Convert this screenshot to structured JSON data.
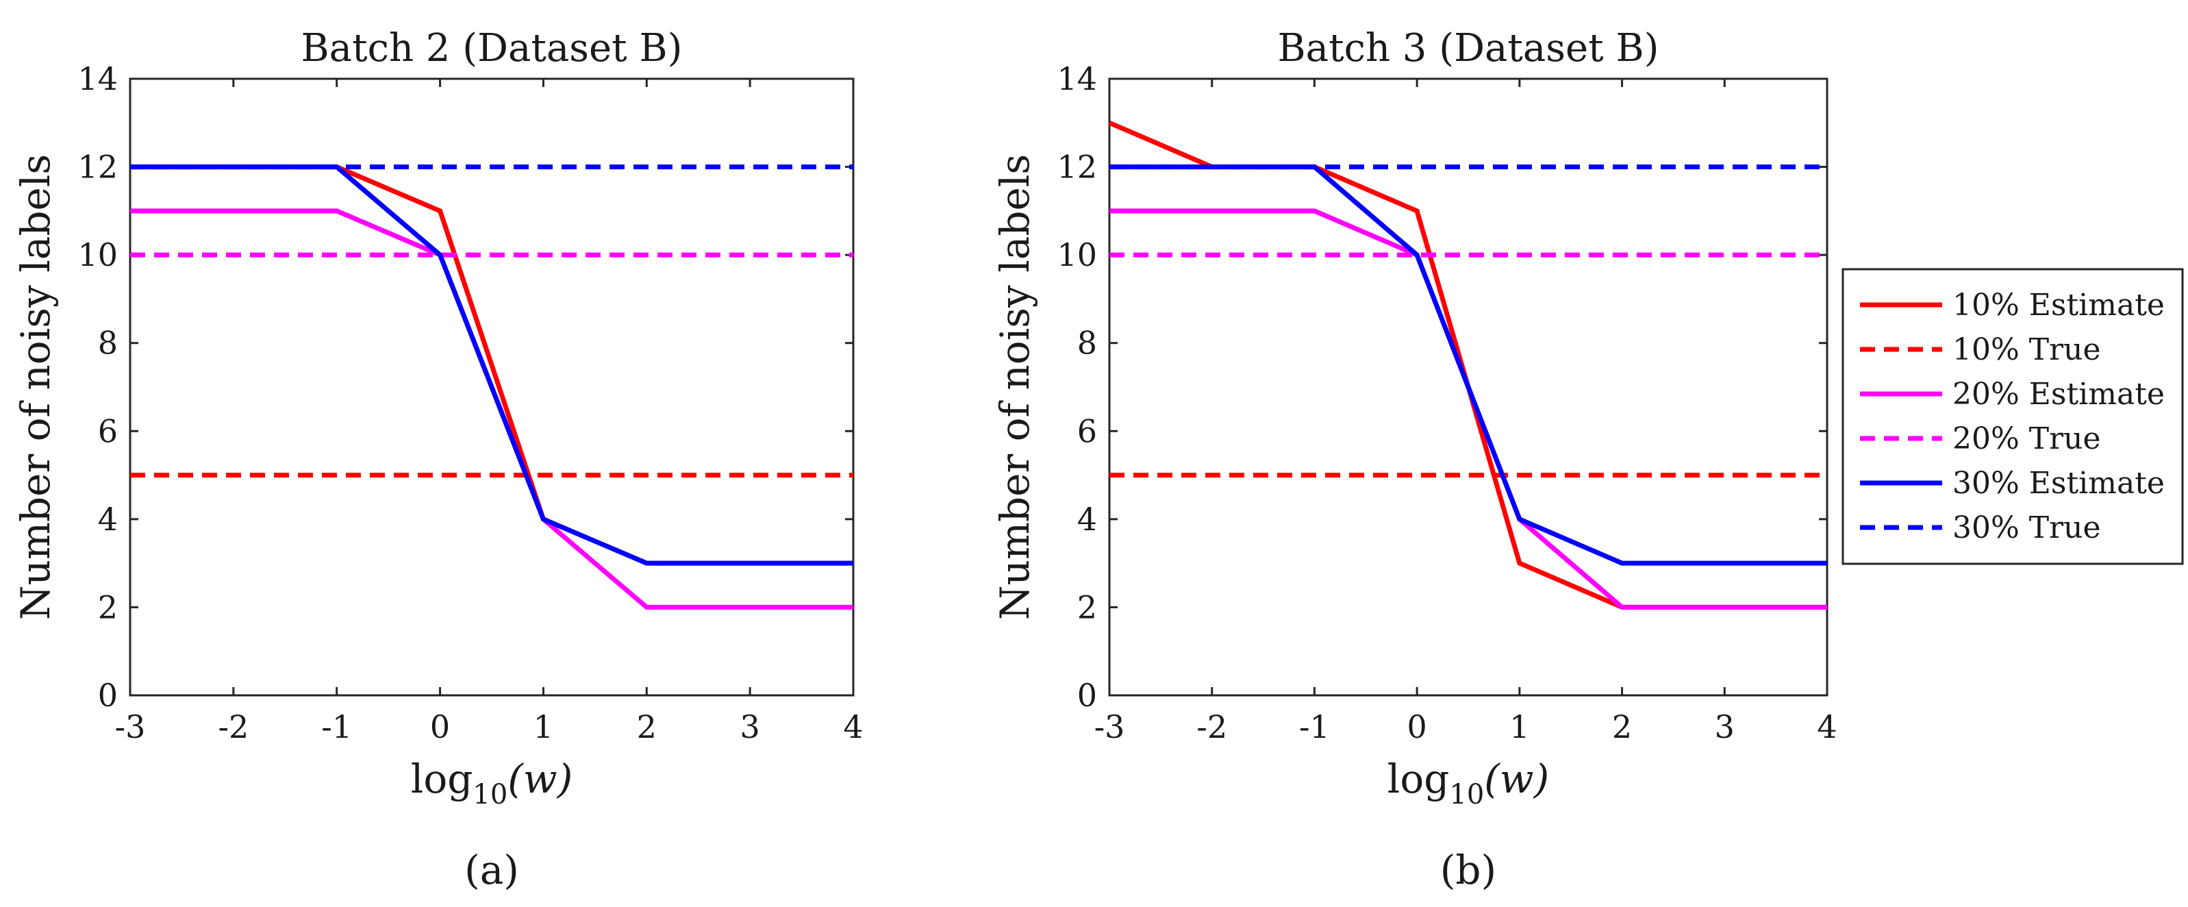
{
  "chart_data": [
    {
      "type": "line",
      "title": "Batch 2 (Dataset B)",
      "caption": "(a)",
      "xlabel": {
        "base": "log",
        "subscript": "10",
        "arg": "(w)"
      },
      "ylabel": "Number of noisy labels",
      "xlim": [
        -3,
        4
      ],
      "ylim": [
        0,
        14
      ],
      "x_ticks": [
        -3,
        -2,
        -1,
        0,
        1,
        2,
        3,
        4
      ],
      "y_ticks": [
        0,
        2,
        4,
        6,
        8,
        10,
        12,
        14
      ],
      "x_tick_labels": [
        "-3",
        "-2",
        "-1",
        "0",
        "1",
        "2",
        "3",
        "4"
      ],
      "y_tick_labels": [
        "0",
        "2",
        "4",
        "6",
        "8",
        "10",
        "12",
        "14"
      ],
      "x": [
        -3,
        -2,
        -1,
        0,
        1,
        2,
        3,
        4
      ],
      "series": [
        {
          "name": "10% Estimate",
          "color": "#ff0000",
          "dash": "solid",
          "values": [
            12,
            12,
            12,
            11,
            4,
            3,
            3,
            3
          ]
        },
        {
          "name": "10% True",
          "color": "#ff0000",
          "dash": "dashed",
          "values": [
            5,
            5,
            5,
            5,
            5,
            5,
            5,
            5
          ]
        },
        {
          "name": "20% Estimate",
          "color": "#ff00ff",
          "dash": "solid",
          "values": [
            11,
            11,
            11,
            10,
            4,
            2,
            2,
            2
          ]
        },
        {
          "name": "20% True",
          "color": "#ff00ff",
          "dash": "dashed",
          "values": [
            10,
            10,
            10,
            10,
            10,
            10,
            10,
            10
          ]
        },
        {
          "name": "30% Estimate",
          "color": "#0000ff",
          "dash": "solid",
          "values": [
            12,
            12,
            12,
            10,
            4,
            3,
            3,
            3
          ]
        },
        {
          "name": "30% True",
          "color": "#0000ff",
          "dash": "dashed",
          "values": [
            12,
            12,
            12,
            12,
            12,
            12,
            12,
            12
          ]
        }
      ]
    },
    {
      "type": "line",
      "title": "Batch 3 (Dataset B)",
      "caption": "(b)",
      "xlabel": {
        "base": "log",
        "subscript": "10",
        "arg": "(w)"
      },
      "ylabel": "Number of noisy labels",
      "xlim": [
        -3,
        4
      ],
      "ylim": [
        0,
        14
      ],
      "x_ticks": [
        -3,
        -2,
        -1,
        0,
        1,
        2,
        3,
        4
      ],
      "y_ticks": [
        0,
        2,
        4,
        6,
        8,
        10,
        12,
        14
      ],
      "x_tick_labels": [
        "-3",
        "-2",
        "-1",
        "0",
        "1",
        "2",
        "3",
        "4"
      ],
      "y_tick_labels": [
        "0",
        "2",
        "4",
        "6",
        "8",
        "10",
        "12",
        "14"
      ],
      "x": [
        -3,
        -2,
        -1,
        0,
        1,
        2,
        3,
        4
      ],
      "series": [
        {
          "name": "10% Estimate",
          "color": "#ff0000",
          "dash": "solid",
          "values": [
            13,
            12,
            12,
            11,
            3,
            2,
            2,
            2
          ]
        },
        {
          "name": "10% True",
          "color": "#ff0000",
          "dash": "dashed",
          "values": [
            5,
            5,
            5,
            5,
            5,
            5,
            5,
            5
          ]
        },
        {
          "name": "20% Estimate",
          "color": "#ff00ff",
          "dash": "solid",
          "values": [
            11,
            11,
            11,
            10,
            4,
            2,
            2,
            2
          ]
        },
        {
          "name": "20% True",
          "color": "#ff00ff",
          "dash": "dashed",
          "values": [
            10,
            10,
            10,
            10,
            10,
            10,
            10,
            10
          ]
        },
        {
          "name": "30% Estimate",
          "color": "#0000ff",
          "dash": "solid",
          "values": [
            12,
            12,
            12,
            10,
            4,
            3,
            3,
            3
          ]
        },
        {
          "name": "30% True",
          "color": "#0000ff",
          "dash": "dashed",
          "values": [
            12,
            12,
            12,
            12,
            12,
            12,
            12,
            12
          ]
        }
      ]
    }
  ],
  "legend": {
    "position": "right",
    "entries": [
      {
        "label": "10% Estimate",
        "color": "#ff0000",
        "dash": "solid"
      },
      {
        "label": "10% True",
        "color": "#ff0000",
        "dash": "dashed"
      },
      {
        "label": "20% Estimate",
        "color": "#ff00ff",
        "dash": "solid"
      },
      {
        "label": "20% True",
        "color": "#ff00ff",
        "dash": "dashed"
      },
      {
        "label": "30% Estimate",
        "color": "#0000ff",
        "dash": "solid"
      },
      {
        "label": "30% True",
        "color": "#0000ff",
        "dash": "dashed"
      }
    ]
  }
}
